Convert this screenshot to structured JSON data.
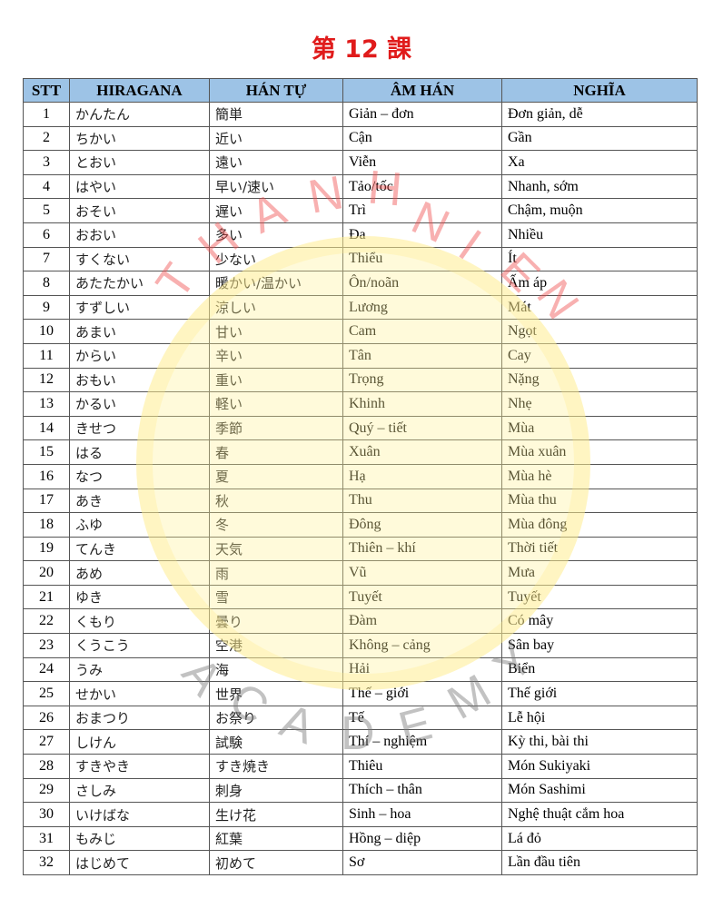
{
  "title": "第 12 課",
  "watermark": {
    "top": "THANH NIEN",
    "bottom": "ACADEMY"
  },
  "colors": {
    "title": "#e01b1b",
    "header_bg": "#9dc3e6"
  },
  "table": {
    "headers": [
      "STT",
      "HIRAGANA",
      "HÁN TỰ",
      "ÂM HÁN",
      "NGHĨA"
    ],
    "rows": [
      [
        "1",
        "かんたん",
        "簡単",
        "Giản – đơn",
        "Đơn giản, dễ"
      ],
      [
        "2",
        "ちかい",
        "近い",
        "Cận",
        "Gần"
      ],
      [
        "3",
        "とおい",
        "遠い",
        "Viễn",
        "Xa"
      ],
      [
        "4",
        "はやい",
        "早い/速い",
        "Tảo/tốc",
        "Nhanh, sớm"
      ],
      [
        "5",
        "おそい",
        "遅い",
        "Trì",
        "Chậm, muộn"
      ],
      [
        "6",
        "おおい",
        "多い",
        "Đa",
        "Nhiều"
      ],
      [
        "7",
        "すくない",
        "少ない",
        "Thiểu",
        "Ít"
      ],
      [
        "8",
        "あたたかい",
        "暖かい/温かい",
        "Ôn/noãn",
        "Ấm áp"
      ],
      [
        "9",
        "すずしい",
        "涼しい",
        "Lương",
        "Mát"
      ],
      [
        "10",
        "あまい",
        "甘い",
        "Cam",
        "Ngọt"
      ],
      [
        "11",
        "からい",
        "辛い",
        "Tân",
        "Cay"
      ],
      [
        "12",
        "おもい",
        "重い",
        "Trọng",
        "Nặng"
      ],
      [
        "13",
        "かるい",
        "軽い",
        "Khinh",
        "Nhẹ"
      ],
      [
        "14",
        "きせつ",
        "季節",
        "Quý – tiết",
        "Mùa"
      ],
      [
        "15",
        "はる",
        "春",
        "Xuân",
        "Mùa xuân"
      ],
      [
        "16",
        "なつ",
        "夏",
        "Hạ",
        "Mùa hè"
      ],
      [
        "17",
        "あき",
        "秋",
        "Thu",
        "Mùa thu"
      ],
      [
        "18",
        "ふゆ",
        "冬",
        "Đông",
        "Mùa đông"
      ],
      [
        "19",
        "てんき",
        "天気",
        "Thiên – khí",
        "Thời tiết"
      ],
      [
        "20",
        "あめ",
        "雨",
        "Vũ",
        "Mưa"
      ],
      [
        "21",
        "ゆき",
        "雪",
        "Tuyết",
        "Tuyết"
      ],
      [
        "22",
        "くもり",
        "曇り",
        "Đàm",
        "Có mây"
      ],
      [
        "23",
        "くうこう",
        "空港",
        "Không – cảng",
        "Sân bay"
      ],
      [
        "24",
        "うみ",
        "海",
        "Hải",
        "Biển"
      ],
      [
        "25",
        "せかい",
        "世界",
        "Thế – giới",
        "Thế giới"
      ],
      [
        "26",
        "おまつり",
        "お祭り",
        "Tế",
        "Lễ hội"
      ],
      [
        "27",
        "しけん",
        "試験",
        "Thí – nghiệm",
        "Kỳ thi, bài thi"
      ],
      [
        "28",
        "すきやき",
        "すき焼き",
        "Thiêu",
        "Món Sukiyaki"
      ],
      [
        "29",
        "さしみ",
        "刺身",
        "Thích – thân",
        "Món Sashimi"
      ],
      [
        "30",
        "いけばな",
        "生け花",
        "Sinh – hoa",
        "Nghệ thuật cắm hoa"
      ],
      [
        "31",
        "もみじ",
        "紅葉",
        "Hồng – diệp",
        "Lá đỏ"
      ],
      [
        "32",
        "はじめて",
        "初めて",
        "Sơ",
        "Lần đầu tiên"
      ]
    ]
  }
}
